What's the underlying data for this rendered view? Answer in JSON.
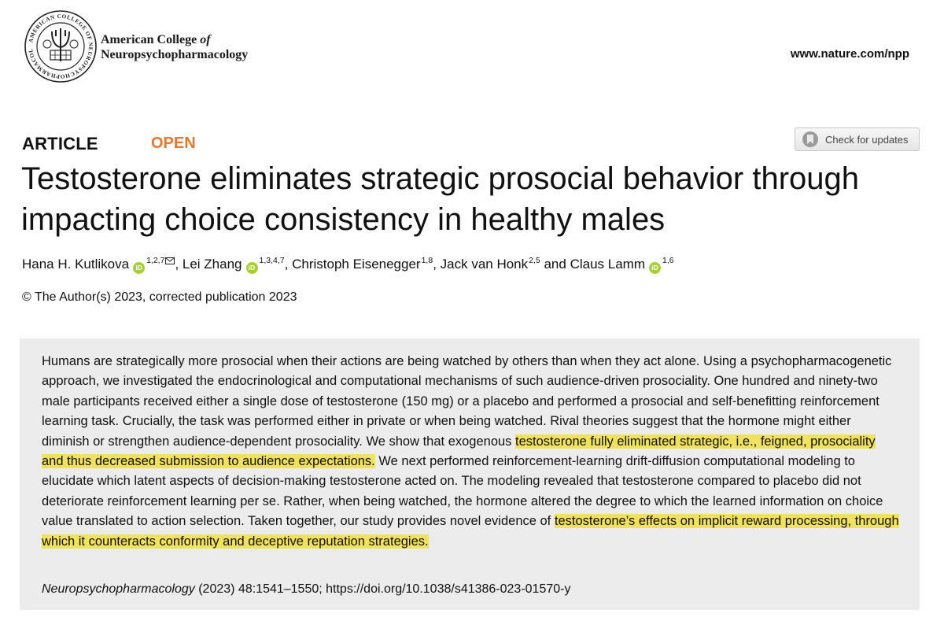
{
  "header": {
    "logo_icon": "acnp-seal-icon",
    "logo_ring_text": "AMERICAN COLLEGE OF NEUROPSYCHOPHARMACOLOGY INC.",
    "org_line1": "American College ",
    "org_line1_italic": "of",
    "org_line2": "Neuropsychopharmacology",
    "site_url": "www.nature.com/npp"
  },
  "article": {
    "type": "ARTICLE",
    "access": "OPEN",
    "access_color": "#e8772e",
    "check_updates_label": "Check for updates",
    "title": "Testosterone eliminates strategic prosocial behavior through impacting choice consistency in healthy males",
    "authors": [
      {
        "name": "Hana H. Kutlikova",
        "orcid": true,
        "affil": "1,2,7",
        "corresponding": true,
        "sep": ", "
      },
      {
        "name": "Lei Zhang",
        "orcid": true,
        "affil": "1,3,4,7",
        "corresponding": false,
        "sep": ", "
      },
      {
        "name": "Christoph Eisenegger",
        "orcid": false,
        "affil": "1,8",
        "corresponding": false,
        "sep": ", "
      },
      {
        "name": "Jack van Honk",
        "orcid": false,
        "affil": "2,5",
        "corresponding": false,
        "sep": " and "
      },
      {
        "name": "Claus Lamm",
        "orcid": true,
        "affil": "1,6",
        "corresponding": false,
        "sep": ""
      }
    ],
    "orcid_badge": "iD",
    "orcid_color": "#a6ce39",
    "copyright": "© The Author(s) 2023, corrected publication 2023",
    "highlight_color": "#f0e15e",
    "abstract": {
      "part1": "Humans are strategically more prosocial when their actions are being watched by others than when they act alone. Using a psychopharmacogenetic approach, we investigated the endocrinological and computational mechanisms of such audience-driven prosociality. One hundred and ninety-two male participants received either a single dose of testosterone (150 mg) or a placebo and performed a prosocial and self-benefitting reinforcement learning task. Crucially, the task was performed either in private or when being watched. Rival theories suggest that the hormone might either diminish or strengthen audience-dependent prosociality. We show that exogenous ",
      "highlight1": "testosterone fully eliminated strategic, i.e., feigned, prosociality and thus decreased submission to audience expectations.",
      "part2": " We next performed reinforcement-learning drift-diffusion computational modeling to elucidate which latent aspects of decision-making testosterone acted on. The modeling revealed that testosterone compared to placebo did not deteriorate reinforcement learning per se. Rather, when being watched, the hormone altered the degree to which the learned information on choice value translated to action selection. Taken together, our study provides novel evidence of ",
      "highlight2": "testosterone’s effects on implicit reward processing, through which it counteracts conformity and deceptive reputation strategies.",
      "part3": ""
    },
    "citation": {
      "journal": "Neuropsychopharmacology",
      "details": " (2023) 48:1541–1550; https://doi.org/10.1038/s41386-023-01570-y"
    }
  }
}
